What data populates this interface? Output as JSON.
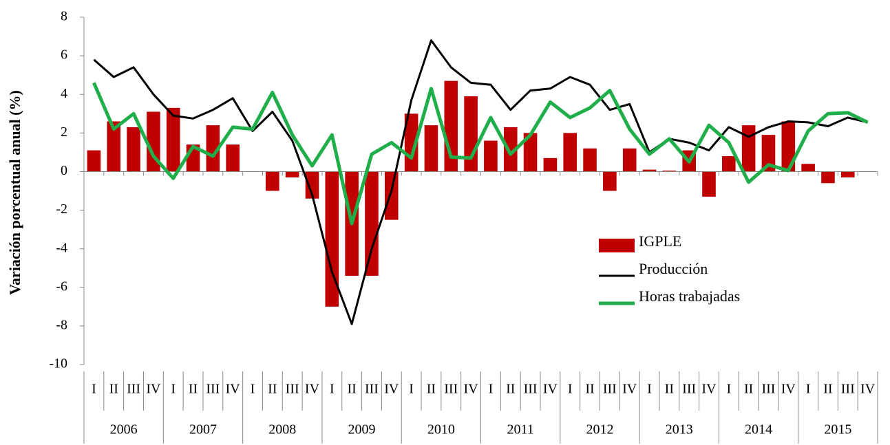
{
  "chart_data": {
    "type": "bar-line",
    "y_label": "Variación porcentual anual (%)",
    "categories": [
      "I",
      "II",
      "III",
      "IV",
      "I",
      "II",
      "III",
      "IV",
      "I",
      "II",
      "III",
      "IV",
      "I",
      "II",
      "III",
      "IV",
      "I",
      "II",
      "III",
      "IV",
      "I",
      "II",
      "III",
      "IV",
      "I",
      "II",
      "III",
      "IV",
      "I",
      "II",
      "III",
      "IV",
      "I",
      "II",
      "III",
      "IV",
      "I",
      "II",
      "III",
      "IV"
    ],
    "groups": [
      "2006",
      "2007",
      "2008",
      "2009",
      "2010",
      "2011",
      "2012",
      "2013",
      "2014",
      "2015"
    ],
    "ylim": [
      -10,
      8
    ],
    "yticks": [
      -10,
      -8,
      -6,
      -4,
      -2,
      0,
      2,
      4,
      6,
      8
    ],
    "legend": "right",
    "series": [
      {
        "name": "IGPLE",
        "type": "bar",
        "color": "#c00000",
        "values": [
          1.1,
          2.6,
          2.3,
          3.1,
          3.3,
          1.4,
          2.4,
          1.4,
          0,
          -1.0,
          -0.3,
          -1.4,
          -7.0,
          -5.4,
          -5.4,
          -2.5,
          3.0,
          2.4,
          4.7,
          3.9,
          1.6,
          2.3,
          2.0,
          0.7,
          2.0,
          1.2,
          -1.0,
          1.2,
          0.1,
          0.05,
          1.1,
          -1.3,
          0.8,
          2.4,
          1.9,
          2.6,
          0.4,
          -0.6,
          -0.3,
          null
        ]
      },
      {
        "name": "Producción",
        "type": "line",
        "color": "#000000",
        "values": [
          5.8,
          4.9,
          5.4,
          4.0,
          2.9,
          2.75,
          3.2,
          3.8,
          2.1,
          3.1,
          1.6,
          -1.2,
          -5.2,
          -7.9,
          -4.0,
          -1.0,
          3.7,
          6.8,
          5.4,
          4.6,
          4.5,
          3.2,
          4.2,
          4.3,
          4.9,
          4.5,
          3.2,
          3.5,
          1.0,
          1.7,
          1.5,
          1.1,
          2.3,
          1.8,
          2.3,
          2.6,
          2.55,
          2.35,
          2.8,
          2.55
        ]
      },
      {
        "name": "Horas trabajadas",
        "type": "line",
        "color": "#1fae4a",
        "values": [
          4.6,
          2.2,
          3.0,
          0.8,
          -0.35,
          1.3,
          0.8,
          2.3,
          2.2,
          4.1,
          1.9,
          0.3,
          1.9,
          -2.7,
          0.9,
          1.5,
          0.7,
          4.3,
          0.75,
          0.7,
          2.8,
          0.9,
          1.9,
          3.6,
          2.8,
          3.3,
          4.2,
          2.2,
          0.9,
          1.7,
          0.5,
          2.4,
          1.5,
          -0.55,
          0.35,
          0.05,
          2.1,
          3.0,
          3.05,
          2.55
        ]
      }
    ]
  }
}
